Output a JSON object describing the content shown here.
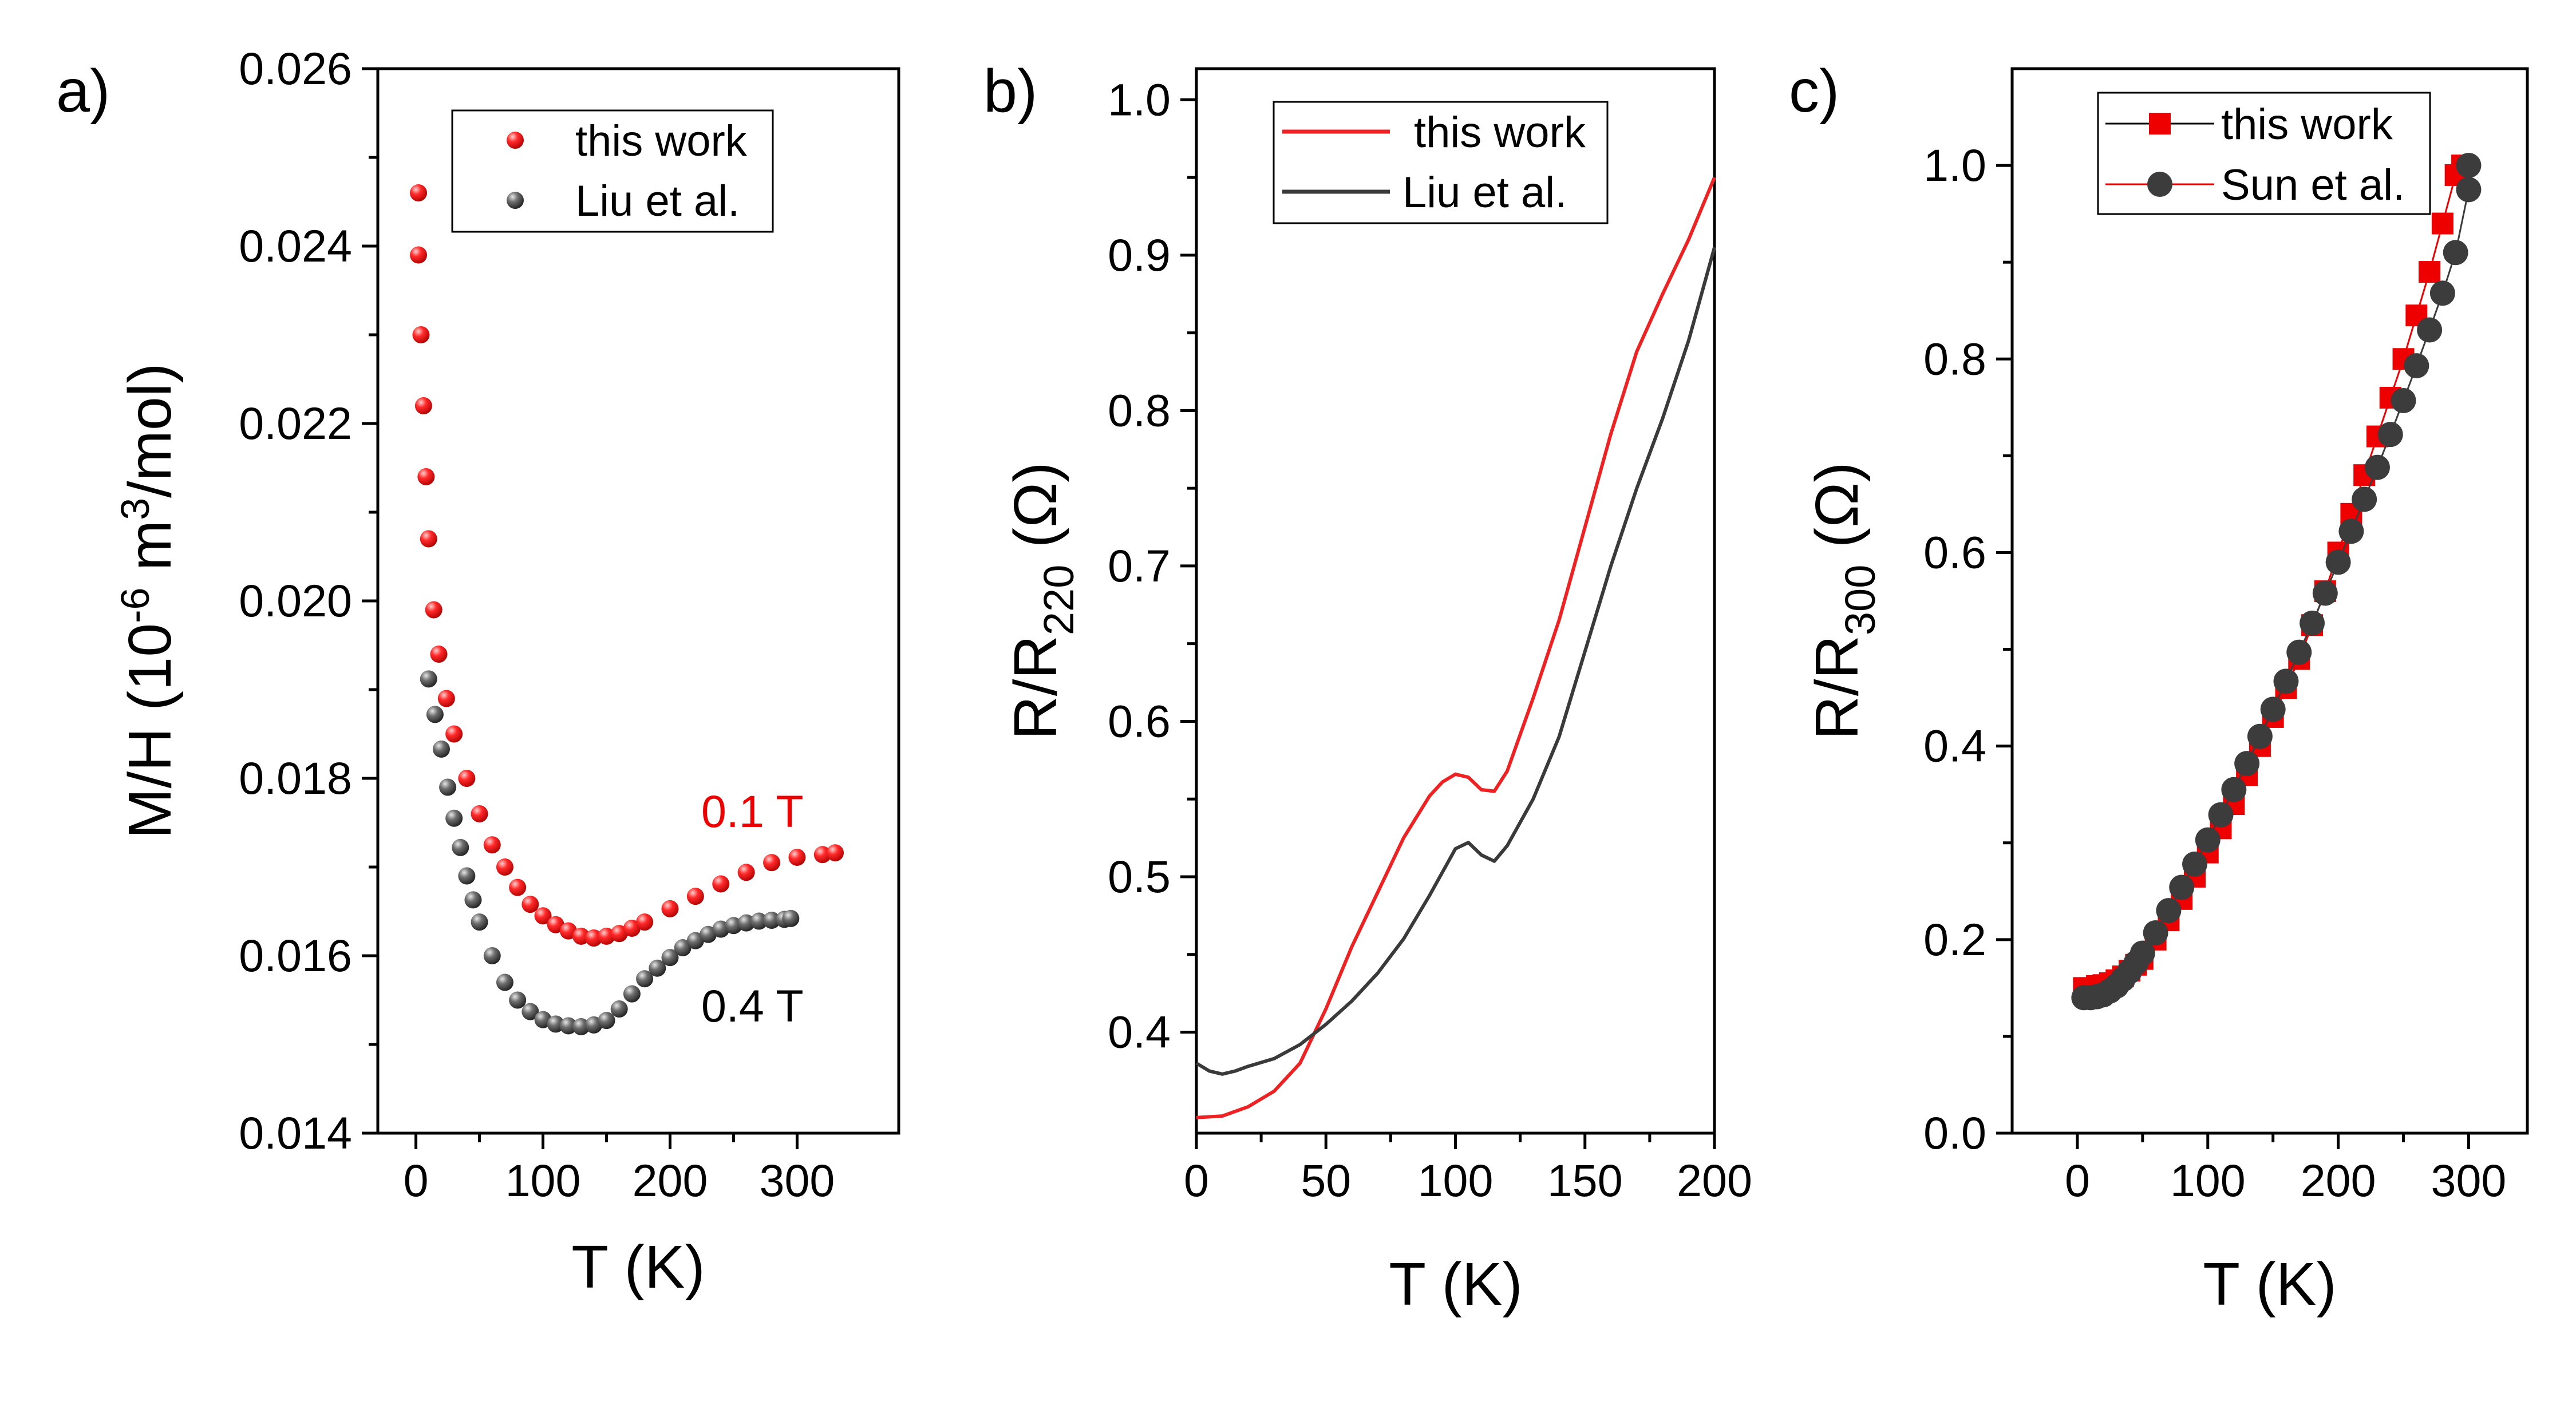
{
  "chart_data": [
    {
      "panel": "a)",
      "type": "scatter",
      "ylabel_parts": [
        "M/H (10",
        "-6",
        " m",
        "3",
        "/mol)"
      ],
      "xlabel": "T (K)",
      "xlim": [
        -30,
        380
      ],
      "ylim": [
        0.014,
        0.026
      ],
      "xticks": [
        0,
        100,
        200,
        300
      ],
      "yticks": [
        "0.014",
        "0.016",
        "0.018",
        "0.020",
        "0.022",
        "0.024",
        "0.026"
      ],
      "legend": {
        "position": "top-right"
      },
      "annotations": [
        {
          "text": "0.1 T",
          "color": "#ee0000",
          "x": 305,
          "y": 0.0173
        },
        {
          "text": "0.4 T",
          "color": "#000000",
          "x": 305,
          "y": 0.0153
        }
      ],
      "series": [
        {
          "name": "this work",
          "color": "#ee0000",
          "marker": "sphere",
          "t": [
            2,
            4,
            6,
            8,
            10,
            14,
            18,
            24,
            30,
            40,
            50,
            60,
            70,
            80,
            90,
            100,
            110,
            120,
            130,
            140,
            150,
            160,
            170,
            180,
            200,
            220,
            240,
            260,
            280,
            300,
            320,
            330
          ],
          "v": [
            0.0239,
            0.023,
            0.0222,
            0.0214,
            0.0207,
            0.0199,
            0.0194,
            0.0189,
            0.0185,
            0.018,
            0.0176,
            0.01725,
            0.017,
            0.01677,
            0.01658,
            0.01645,
            0.01635,
            0.01628,
            0.01622,
            0.0162,
            0.01622,
            0.01625,
            0.01631,
            0.01638,
            0.01653,
            0.01667,
            0.01681,
            0.01694,
            0.01705,
            0.01711,
            0.01714,
            0.01716
          ]
        },
        {
          "name": "Liu et al.",
          "color": "#3c3c3c",
          "marker": "sphere",
          "t": [
            10,
            15,
            20,
            25,
            30,
            35,
            40,
            45,
            50,
            60,
            70,
            80,
            90,
            100,
            110,
            120,
            130,
            140,
            150,
            160,
            170,
            180,
            190,
            200,
            210,
            220,
            230,
            240,
            250,
            260,
            270,
            280,
            290,
            295
          ],
          "v": [
            0.01912,
            0.01872,
            0.01833,
            0.0179,
            0.01755,
            0.01722,
            0.0169,
            0.01663,
            0.01638,
            0.016,
            0.0157,
            0.0155,
            0.01537,
            0.01528,
            0.01523,
            0.01521,
            0.0152,
            0.01522,
            0.01527,
            0.0154,
            0.01557,
            0.01574,
            0.01586,
            0.01598,
            0.01609,
            0.01617,
            0.01624,
            0.0163,
            0.01634,
            0.01637,
            0.01639,
            0.0164,
            0.01641,
            0.01642
          ]
        },
        {
          "name": "this work (outlier)",
          "color": "#ee0000",
          "marker": "sphere",
          "t": [
            2
          ],
          "v": [
            0.0246
          ],
          "in_legend": false
        }
      ]
    },
    {
      "panel": "b)",
      "type": "line",
      "ylabel_parts": [
        "R/R",
        "220",
        " (Ω)"
      ],
      "xlabel": "T (K)",
      "xlim": [
        0,
        200
      ],
      "ylim": [
        0.335,
        1.02
      ],
      "xticks": [
        0,
        50,
        100,
        150,
        200
      ],
      "yticks": [
        "0.4",
        "0.5",
        "0.6",
        "0.7",
        "0.8",
        "0.9",
        "1.0"
      ],
      "legend": {
        "position": "top-right"
      },
      "series": [
        {
          "name": "this work",
          "color": "#ee2222",
          "t": [
            0,
            10,
            20,
            30,
            40,
            50,
            60,
            70,
            80,
            90,
            95,
            100,
            105,
            110,
            115,
            120,
            130,
            140,
            150,
            160,
            170,
            180,
            190,
            200
          ],
          "v": [
            0.345,
            0.346,
            0.352,
            0.362,
            0.38,
            0.415,
            0.455,
            0.49,
            0.525,
            0.552,
            0.561,
            0.566,
            0.564,
            0.556,
            0.555,
            0.568,
            0.615,
            0.665,
            0.725,
            0.785,
            0.838,
            0.875,
            0.91,
            0.95
          ]
        },
        {
          "name": "Liu et al.",
          "color": "#3a3a3a",
          "t": [
            0,
            5,
            10,
            15,
            20,
            30,
            40,
            50,
            60,
            70,
            80,
            90,
            95,
            100,
            105,
            110,
            115,
            120,
            130,
            140,
            150,
            160,
            170,
            180,
            190,
            200
          ],
          "v": [
            0.38,
            0.375,
            0.373,
            0.375,
            0.378,
            0.383,
            0.392,
            0.405,
            0.42,
            0.438,
            0.46,
            0.488,
            0.503,
            0.518,
            0.522,
            0.514,
            0.51,
            0.52,
            0.55,
            0.59,
            0.645,
            0.7,
            0.75,
            0.795,
            0.845,
            0.905
          ]
        }
      ]
    },
    {
      "panel": "c)",
      "type": "scatter",
      "ylabel_parts": [
        "R/R",
        "300",
        " (Ω)"
      ],
      "xlabel": "T (K)",
      "xlim": [
        -50,
        345
      ],
      "ylim": [
        0,
        1.1
      ],
      "xticks": [
        0,
        100,
        200,
        300
      ],
      "yticks": [
        "0.0",
        "0.2",
        "0.4",
        "0.6",
        "0.8",
        "1.0"
      ],
      "legend": {
        "position": "top-right"
      },
      "series": [
        {
          "name": "this work",
          "color": "#ee0000",
          "marker": "square",
          "t": [
            5,
            10,
            15,
            20,
            25,
            30,
            35,
            40,
            45,
            50,
            60,
            70,
            80,
            90,
            100,
            110,
            120,
            130,
            140,
            150,
            160,
            170,
            180,
            190,
            200,
            210,
            220,
            230,
            240,
            250,
            260,
            270,
            280,
            290
          ],
          "v": [
            0.15,
            0.15,
            0.152,
            0.153,
            0.155,
            0.158,
            0.162,
            0.168,
            0.174,
            0.18,
            0.2,
            0.22,
            0.242,
            0.265,
            0.29,
            0.315,
            0.34,
            0.37,
            0.4,
            0.43,
            0.46,
            0.49,
            0.525,
            0.56,
            0.6,
            0.64,
            0.68,
            0.72,
            0.76,
            0.8,
            0.845,
            0.89,
            0.94,
            0.99
          ]
        },
        {
          "name": "Sun et al.",
          "color": "#3c3c3c",
          "marker": "circle",
          "t": [
            5,
            10,
            15,
            20,
            25,
            30,
            35,
            40,
            45,
            50,
            60,
            70,
            80,
            90,
            100,
            110,
            120,
            130,
            140,
            150,
            160,
            170,
            180,
            190,
            200,
            210,
            220,
            230,
            240,
            250,
            260,
            270,
            280,
            290,
            300
          ],
          "v": [
            0.14,
            0.14,
            0.141,
            0.143,
            0.147,
            0.152,
            0.159,
            0.167,
            0.176,
            0.186,
            0.207,
            0.23,
            0.254,
            0.278,
            0.303,
            0.329,
            0.355,
            0.382,
            0.41,
            0.438,
            0.467,
            0.497,
            0.527,
            0.558,
            0.59,
            0.622,
            0.655,
            0.688,
            0.722,
            0.757,
            0.793,
            0.83,
            0.868,
            0.91,
            0.975
          ]
        },
        {
          "name": "this work (top)",
          "color": "#ee0000",
          "marker": "square",
          "t": [
            295
          ],
          "v": [
            1.0
          ],
          "in_legend": false
        },
        {
          "name": "Sun et al. (top)",
          "color": "#3c3c3c",
          "marker": "circle",
          "t": [
            300
          ],
          "v": [
            1.0
          ],
          "in_legend": false
        }
      ]
    }
  ]
}
